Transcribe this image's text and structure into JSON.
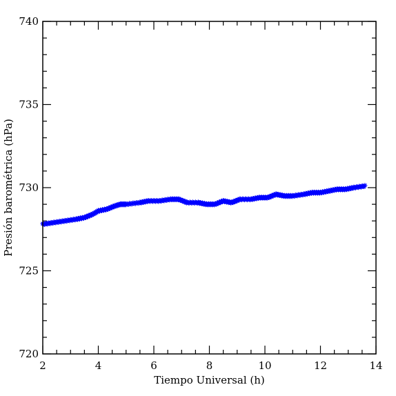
{
  "chart_data": {
    "type": "scatter",
    "xlabel": "Tiempo Universal (h)",
    "ylabel": "Presión barométrica (hPa)",
    "xlim": [
      2,
      14
    ],
    "ylim": [
      720,
      740
    ],
    "xticks": [
      2,
      4,
      6,
      8,
      10,
      12,
      14
    ],
    "yticks": [
      720,
      725,
      730,
      735,
      740
    ],
    "grid": false,
    "series": [
      {
        "color": "#0000ff",
        "marker": "star",
        "x": [
          2.0,
          2.4,
          2.8,
          3.2,
          3.5,
          3.8,
          4.0,
          4.3,
          4.6,
          4.8,
          5.0,
          5.5,
          5.8,
          6.2,
          6.6,
          6.9,
          7.2,
          7.6,
          7.9,
          8.2,
          8.5,
          8.8,
          9.1,
          9.5,
          9.8,
          10.1,
          10.4,
          10.7,
          11.0,
          11.4,
          11.7,
          12.0,
          12.3,
          12.6,
          12.9,
          13.2,
          13.6
        ],
        "y": [
          727.8,
          727.9,
          728.0,
          728.1,
          728.2,
          728.4,
          728.6,
          728.7,
          728.9,
          729.0,
          729.0,
          729.1,
          729.2,
          729.2,
          729.3,
          729.3,
          729.1,
          729.1,
          729.0,
          729.0,
          729.2,
          729.1,
          729.3,
          729.3,
          729.4,
          729.4,
          729.6,
          729.5,
          729.5,
          729.6,
          729.7,
          729.7,
          729.8,
          729.9,
          729.9,
          730.0,
          730.1
        ]
      }
    ]
  }
}
